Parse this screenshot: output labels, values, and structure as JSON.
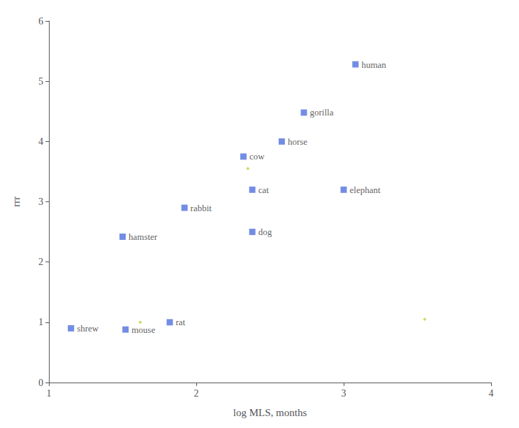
{
  "chart_data": {
    "type": "scatter",
    "xlabel": "log MLS, months",
    "ylabel": "rrr",
    "xlim": [
      1,
      4
    ],
    "ylim": [
      0,
      6
    ],
    "xticks": [
      1,
      2,
      3,
      4
    ],
    "yticks": [
      0,
      1,
      2,
      3,
      4,
      5,
      6
    ],
    "grid": false,
    "series": [
      {
        "marker": "square",
        "x": [
          1.15,
          1.52,
          1.82,
          1.5,
          1.92,
          2.38,
          2.38,
          2.32,
          2.58,
          2.73,
          3.0,
          3.08
        ],
        "values": [
          0.9,
          0.88,
          1.0,
          2.42,
          2.9,
          3.2,
          2.5,
          3.75,
          4.0,
          4.48,
          3.2,
          5.28
        ],
        "labels": [
          "shrew",
          "mouse",
          "rat",
          "hamster",
          "rabbit",
          "cat",
          "dog",
          "cow",
          "horse",
          "gorilla",
          "elephant",
          "human"
        ]
      },
      {
        "marker": "dot",
        "x": [
          1.62,
          2.35,
          3.55
        ],
        "values": [
          1.0,
          3.55,
          1.05
        ]
      }
    ]
  }
}
